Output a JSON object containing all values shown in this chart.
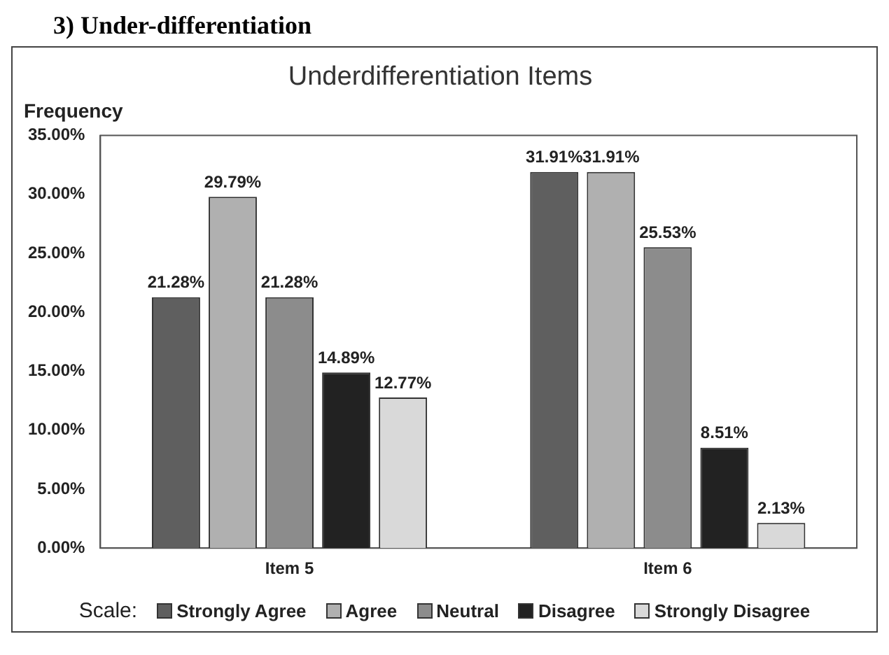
{
  "chart_data": {
    "type": "bar",
    "title": "Underdifferentiation Items",
    "ylabel": "Frequency",
    "legend_title": "Scale:",
    "annotations": [
      "3) Under-differentiation"
    ],
    "categories": [
      "Item 5",
      "Item 6"
    ],
    "series": [
      {
        "name": "Strongly Agree",
        "color": "#5f5f5f",
        "values": [
          21.28,
          31.91
        ],
        "value_labels": [
          "21.28%",
          "31.91%"
        ]
      },
      {
        "name": "Agree",
        "color": "#b0b0b0",
        "values": [
          29.79,
          31.91
        ],
        "value_labels": [
          "29.79%",
          "31.91%"
        ]
      },
      {
        "name": "Neutral",
        "color": "#8c8c8c",
        "values": [
          21.28,
          25.53
        ],
        "value_labels": [
          "21.28%",
          "25.53%"
        ]
      },
      {
        "name": "Disagree",
        "color": "#222222",
        "values": [
          14.89,
          8.51
        ],
        "value_labels": [
          "14.89%",
          "8.51%"
        ]
      },
      {
        "name": "Strongly Disagree",
        "color": "#d9d9d9",
        "values": [
          12.77,
          2.13
        ],
        "value_labels": [
          "12.77%",
          "2.13%"
        ]
      }
    ],
    "ylim": [
      0,
      35
    ],
    "yticks": [
      {
        "value": 0,
        "label": "0.00%"
      },
      {
        "value": 5,
        "label": "5.00%"
      },
      {
        "value": 10,
        "label": "10.00%"
      },
      {
        "value": 15,
        "label": "15.00%"
      },
      {
        "value": 20,
        "label": "20.00%"
      },
      {
        "value": 25,
        "label": "25.00%"
      },
      {
        "value": 30,
        "label": "30.00%"
      },
      {
        "value": 35,
        "label": "35.00%"
      }
    ],
    "grid": false,
    "legend": "bottom"
  }
}
